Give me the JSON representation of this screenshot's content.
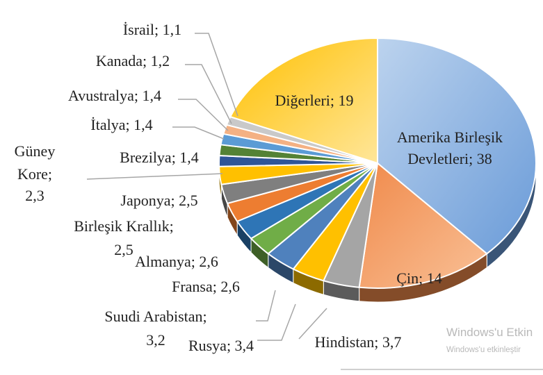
{
  "chart_data": {
    "type": "pie",
    "title": "",
    "slices": [
      {
        "label": "Amerika Birleşik Devletleri; 38",
        "value": 38,
        "color": "#6a9bd8"
      },
      {
        "label": "Çin; 14",
        "value": 14,
        "color": "#f08a4b"
      },
      {
        "label": "Hindistan; 3,7",
        "value": 3.7,
        "color": "#a5a5a5"
      },
      {
        "label": "Rusya; 3,4",
        "value": 3.4,
        "color": "#ffc000"
      },
      {
        "label": "Suudi Arabistan; 3,2",
        "value": 3.2,
        "color": "#4f81bd"
      },
      {
        "label": "Fransa; 2,6",
        "value": 2.6,
        "color": "#70ad47"
      },
      {
        "label": "Almanya; 2,6",
        "value": 2.6,
        "color": "#2e75b6"
      },
      {
        "label": "Birleşik Krallık; 2,5",
        "value": 2.5,
        "color": "#ed7d31"
      },
      {
        "label": "Japonya; 2,5",
        "value": 2.5,
        "color": "#7f7f7f"
      },
      {
        "label": "Güney Kore; 2,3",
        "value": 2.3,
        "color": "#ffc000"
      },
      {
        "label": "Brezilya; 1,4",
        "value": 1.4,
        "color": "#2f5597"
      },
      {
        "label": "İtalya; 1,4",
        "value": 1.4,
        "color": "#548235"
      },
      {
        "label": "Avustralya; 1,4",
        "value": 1.4,
        "color": "#5b9bd5"
      },
      {
        "label": "Kanada; 1,2",
        "value": 1.2,
        "color": "#f4b183"
      },
      {
        "label": "İsrail; 1,1",
        "value": 1.1,
        "color": "#c9c9c9"
      },
      {
        "label": "Diğerleri; 19",
        "value": 19,
        "color": "#ffd966"
      }
    ],
    "legend": "none"
  },
  "watermark": {
    "line1": "Windows'u Etkin",
    "line2": "Windows'u etkinleştir"
  }
}
